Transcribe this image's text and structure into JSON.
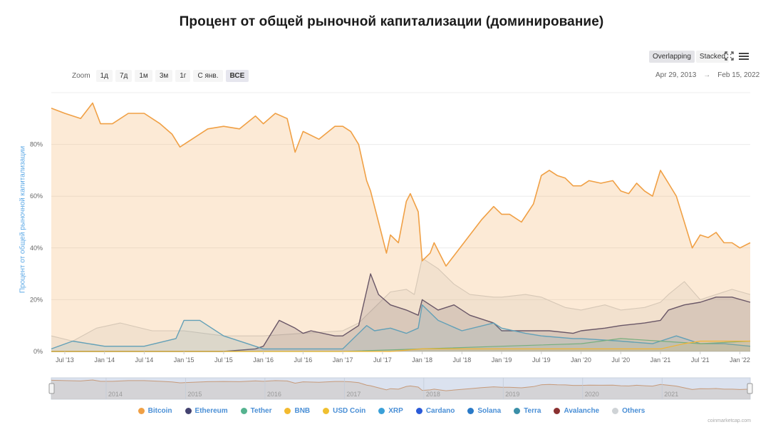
{
  "title": "Процент от общей рыночной капитализации (доминирование)",
  "controls": {
    "modes": [
      "Overlapping",
      "Stacked"
    ],
    "active_mode": "Overlapping",
    "zoom_label": "Zoom",
    "zoom_buttons": [
      "1д",
      "7д",
      "1м",
      "3м",
      "1г",
      "С янв.",
      "ВСЕ"
    ],
    "active_zoom": "ВСЕ",
    "range_from": "Apr 29, 2013",
    "range_arrow": "→",
    "range_to": "Feb 15, 2022"
  },
  "credit": "coinmarketcap.com",
  "colors": {
    "Bitcoin": "#f0a045",
    "Ethereum": "#434270",
    "Tether": "#55b38f",
    "BNB": "#f3ba2f",
    "USD Coin": "#f0c030",
    "XRP": "#3aa0d8",
    "Cardano": "#2a5ad8",
    "Solana": "#2a7ac8",
    "Terra": "#3a8fa8",
    "Avalanche": "#8a3030",
    "Others": "#cfd3d6"
  },
  "chart_data": {
    "type": "area",
    "title": "Процент от общей рыночной капитализации (доминирование)",
    "ylabel": "Процент от общей рыночной капитализации",
    "ylim": [
      0,
      100
    ],
    "y_ticks": [
      "0%",
      "20%",
      "40%",
      "60%",
      "80%"
    ],
    "x_range": [
      2013.33,
      2022.13
    ],
    "x_ticks": [
      {
        "label": "Jul '13",
        "x": 2013.5
      },
      {
        "label": "Jan '14",
        "x": 2014.0
      },
      {
        "label": "Jul '14",
        "x": 2014.5
      },
      {
        "label": "Jan '15",
        "x": 2015.0
      },
      {
        "label": "Jul '15",
        "x": 2015.5
      },
      {
        "label": "Jan '16",
        "x": 2016.0
      },
      {
        "label": "Jul '16",
        "x": 2016.5
      },
      {
        "label": "Jan '17",
        "x": 2017.0
      },
      {
        "label": "Jul '17",
        "x": 2017.5
      },
      {
        "label": "Jan '18",
        "x": 2018.0
      },
      {
        "label": "Jul '18",
        "x": 2018.5
      },
      {
        "label": "Jan '19",
        "x": 2019.0
      },
      {
        "label": "Jul '19",
        "x": 2019.5
      },
      {
        "label": "Jan '20",
        "x": 2020.0
      },
      {
        "label": "Jul '20",
        "x": 2020.5
      },
      {
        "label": "Jan '21",
        "x": 2021.0
      },
      {
        "label": "Jul '21",
        "x": 2021.5
      },
      {
        "label": "Jan '22",
        "x": 2022.0
      }
    ],
    "navigator_labels": [
      "2014",
      "2015",
      "2016",
      "2017",
      "2018",
      "2019",
      "2020",
      "2021"
    ],
    "series": [
      {
        "name": "Others",
        "x": [
          2013.33,
          2013.6,
          2013.9,
          2014.2,
          2014.6,
          2015.0,
          2015.5,
          2016.0,
          2016.5,
          2017.0,
          2017.2,
          2017.4,
          2017.6,
          2017.8,
          2017.9,
          2018.0,
          2018.2,
          2018.4,
          2018.6,
          2018.9,
          2019.0,
          2019.3,
          2019.5,
          2019.8,
          2020.0,
          2020.3,
          2020.5,
          2020.8,
          2021.0,
          2021.1,
          2021.3,
          2021.5,
          2021.7,
          2021.9,
          2022.13
        ],
        "values": [
          6,
          4,
          9,
          11,
          8,
          8,
          6,
          6,
          7,
          8,
          11,
          17,
          23,
          24,
          22,
          36,
          32,
          26,
          22,
          21,
          21,
          22,
          21,
          17,
          16,
          18,
          16,
          17,
          19,
          22,
          27,
          20,
          22,
          24,
          22
        ]
      },
      {
        "name": "Ethereum",
        "x": [
          2013.33,
          2015.5,
          2015.9,
          2016.0,
          2016.2,
          2016.4,
          2016.5,
          2016.6,
          2016.9,
          2017.0,
          2017.2,
          2017.35,
          2017.45,
          2017.6,
          2017.8,
          2017.95,
          2018.0,
          2018.2,
          2018.4,
          2018.6,
          2018.9,
          2019.0,
          2019.3,
          2019.6,
          2019.9,
          2020.0,
          2020.3,
          2020.5,
          2020.8,
          2021.0,
          2021.1,
          2021.3,
          2021.5,
          2021.7,
          2021.9,
          2022.13
        ],
        "values": [
          0,
          0,
          1,
          2,
          12,
          9,
          7,
          8,
          6,
          6,
          10,
          30,
          22,
          18,
          16,
          14,
          20,
          16,
          18,
          14,
          11,
          8,
          8,
          8,
          7,
          8,
          9,
          10,
          11,
          12,
          16,
          18,
          19,
          21,
          21,
          19
        ]
      },
      {
        "name": "XRP",
        "x": [
          2013.33,
          2013.6,
          2014.0,
          2014.5,
          2014.9,
          2015.0,
          2015.2,
          2015.5,
          2015.8,
          2016.0,
          2016.5,
          2017.0,
          2017.3,
          2017.4,
          2017.6,
          2017.8,
          2017.95,
          2018.0,
          2018.2,
          2018.5,
          2018.9,
          2019.0,
          2019.3,
          2019.5,
          2019.9,
          2020.0,
          2020.5,
          2020.9,
          2021.0,
          2021.2,
          2021.5,
          2021.8,
          2022.13
        ],
        "values": [
          1,
          4,
          2,
          2,
          5,
          12,
          12,
          6,
          3,
          1,
          1,
          1,
          10,
          8,
          9,
          7,
          9,
          18,
          12,
          8,
          11,
          9,
          7,
          6,
          5,
          5,
          4,
          3,
          4,
          6,
          3,
          3,
          2
        ]
      },
      {
        "name": "Tether",
        "x": [
          2013.33,
          2017.0,
          2018.0,
          2019.0,
          2020.0,
          2020.5,
          2021.0,
          2021.5,
          2022.13
        ],
        "values": [
          0,
          0,
          1,
          2,
          3,
          5,
          4,
          3,
          4
        ]
      },
      {
        "name": "BNB",
        "x": [
          2013.33,
          2017.6,
          2018.0,
          2019.0,
          2020.0,
          2021.0,
          2021.3,
          2021.5,
          2022.13
        ],
        "values": [
          0,
          0,
          1,
          1,
          1,
          1,
          3,
          4,
          4
        ]
      },
      {
        "name": "Bitcoin",
        "x": [
          2013.33,
          2013.5,
          2013.7,
          2013.85,
          2013.95,
          2014.1,
          2014.3,
          2014.5,
          2014.7,
          2014.85,
          2014.95,
          2015.0,
          2015.3,
          2015.5,
          2015.7,
          2015.9,
          2016.0,
          2016.15,
          2016.3,
          2016.4,
          2016.5,
          2016.7,
          2016.9,
          2017.0,
          2017.1,
          2017.2,
          2017.3,
          2017.35,
          2017.45,
          2017.55,
          2017.6,
          2017.7,
          2017.8,
          2017.85,
          2017.95,
          2018.0,
          2018.1,
          2018.15,
          2018.3,
          2018.45,
          2018.6,
          2018.75,
          2018.9,
          2019.0,
          2019.1,
          2019.25,
          2019.4,
          2019.5,
          2019.6,
          2019.7,
          2019.8,
          2019.9,
          2020.0,
          2020.1,
          2020.25,
          2020.4,
          2020.5,
          2020.6,
          2020.7,
          2020.8,
          2020.9,
          2021.0,
          2021.1,
          2021.2,
          2021.3,
          2021.4,
          2021.5,
          2021.6,
          2021.7,
          2021.8,
          2021.9,
          2022.0,
          2022.13
        ],
        "values": [
          94,
          92,
          90,
          96,
          88,
          88,
          92,
          92,
          88,
          84,
          79,
          80,
          86,
          87,
          86,
          91,
          88,
          92,
          90,
          77,
          85,
          82,
          87,
          87,
          85,
          80,
          66,
          62,
          50,
          38,
          45,
          42,
          58,
          61,
          54,
          35,
          38,
          42,
          33,
          39,
          45,
          51,
          56,
          53,
          53,
          50,
          57,
          68,
          70,
          68,
          67,
          64,
          64,
          66,
          65,
          66,
          62,
          61,
          65,
          62,
          60,
          70,
          65,
          60,
          50,
          40,
          45,
          44,
          46,
          42,
          42,
          40,
          42
        ]
      }
    ]
  },
  "legend": [
    {
      "name": "Bitcoin",
      "color": "#f0a045"
    },
    {
      "name": "Ethereum",
      "color": "#434270"
    },
    {
      "name": "Tether",
      "color": "#55b38f"
    },
    {
      "name": "BNB",
      "color": "#f3ba2f"
    },
    {
      "name": "USD Coin",
      "color": "#f0c030"
    },
    {
      "name": "XRP",
      "color": "#3aa0d8"
    },
    {
      "name": "Cardano",
      "color": "#2a5ad8"
    },
    {
      "name": "Solana",
      "color": "#2a7ac8"
    },
    {
      "name": "Terra",
      "color": "#3a8fa8"
    },
    {
      "name": "Avalanche",
      "color": "#8a3030"
    },
    {
      "name": "Others",
      "color": "#cfd3d6"
    }
  ]
}
